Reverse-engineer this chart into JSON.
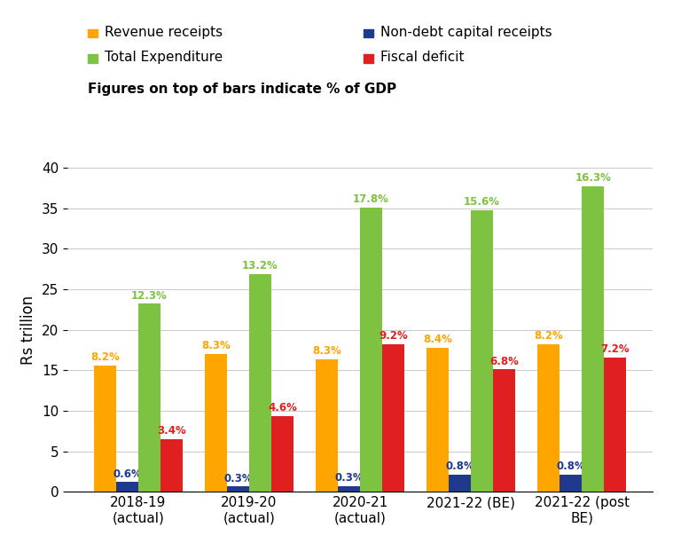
{
  "categories": [
    "2018-19\n(actual)",
    "2019-20\n(actual)",
    "2020-21\n(actual)",
    "2021-22 (BE)",
    "2021-22 (post\nBE)"
  ],
  "series": {
    "Revenue receipts": {
      "values": [
        15.6,
        17.0,
        16.4,
        17.8,
        18.2
      ],
      "color": "#FFA500",
      "pct_labels": [
        "8.2%",
        "8.3%",
        "8.3%",
        "8.4%",
        "8.2%"
      ]
    },
    "Non-debt capital receipts": {
      "values": [
        1.2,
        0.65,
        0.75,
        2.1,
        2.1
      ],
      "color": "#1F3A8C",
      "pct_labels": [
        "0.6%",
        "0.3%",
        "0.3%",
        "0.8%",
        "0.8%"
      ]
    },
    "Total Expenditure": {
      "values": [
        23.2,
        26.9,
        35.1,
        34.8,
        37.7
      ],
      "color": "#7DC241",
      "pct_labels": [
        "12.3%",
        "13.2%",
        "17.8%",
        "15.6%",
        "16.3%"
      ]
    },
    "Fiscal deficit": {
      "values": [
        6.5,
        9.4,
        18.2,
        15.1,
        16.6
      ],
      "color": "#E02020",
      "pct_labels": [
        "3.4%",
        "4.6%",
        "9.2%",
        "6.8%",
        "7.2%"
      ]
    }
  },
  "ylabel": "Rs trillion",
  "ylim": [
    0,
    40
  ],
  "yticks": [
    0,
    5,
    10,
    15,
    20,
    25,
    30,
    35,
    40
  ],
  "subtitle": "Figures on top of bars indicate % of GDP",
  "background_color": "#FFFFFF",
  "label_fontsize": 8.5,
  "pct_label_colors": {
    "Revenue receipts": "#FFA500",
    "Non-debt capital receipts": "#1F3A8C",
    "Total Expenditure": "#7DC241",
    "Fiscal deficit": "#E02020"
  },
  "legend_entries_row1": [
    "Revenue receipts",
    "Non-debt capital receipts"
  ],
  "legend_entries_row2": [
    "Total Expenditure",
    "Fiscal deficit"
  ]
}
